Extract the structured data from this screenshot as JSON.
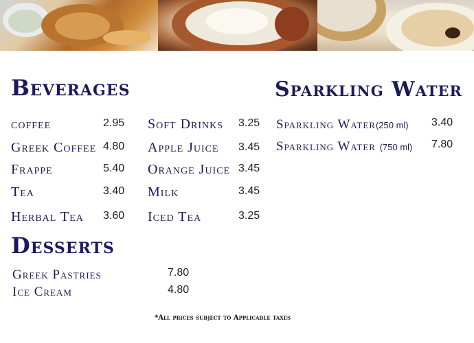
{
  "sections": {
    "beverages": {
      "title": "Beverages",
      "column1": [
        {
          "name": "coffee",
          "price": "2.95"
        },
        {
          "name": "Greek Coffee",
          "price": "4.80"
        },
        {
          "name": "Frappe",
          "price": "5.40"
        },
        {
          "name": "Tea",
          "price": "3.40"
        },
        {
          "name": "Herbal Tea",
          "price": "3.60"
        }
      ],
      "column2": [
        {
          "name": "Soft Drinks",
          "price": "3.25"
        },
        {
          "name": "Apple Juice",
          "price": "3.45"
        },
        {
          "name": "Orange Juice",
          "price": "3.45"
        },
        {
          "name": "Milk",
          "price": "3.45"
        },
        {
          "name": "Iced Tea",
          "price": "3.25"
        }
      ]
    },
    "sparkling_water": {
      "title": "Sparkling Water",
      "items": [
        {
          "name": "Sparkling Water",
          "volume": "(250 ml)",
          "price": "3.40"
        },
        {
          "name": "Sparkling Water",
          "volume": "(750 ml)",
          "price": "7.80"
        }
      ]
    },
    "desserts": {
      "title": "Desserts",
      "items": [
        {
          "name": "Greek Pastries",
          "price": "7.80"
        },
        {
          "name": "Ice Cream",
          "price": "4.80"
        }
      ]
    }
  },
  "footnote": "*All prices subject to Applicable taxes",
  "colors": {
    "heading": "#1b1a5c",
    "price": "#1f1f1f",
    "background": "#ffffff"
  }
}
